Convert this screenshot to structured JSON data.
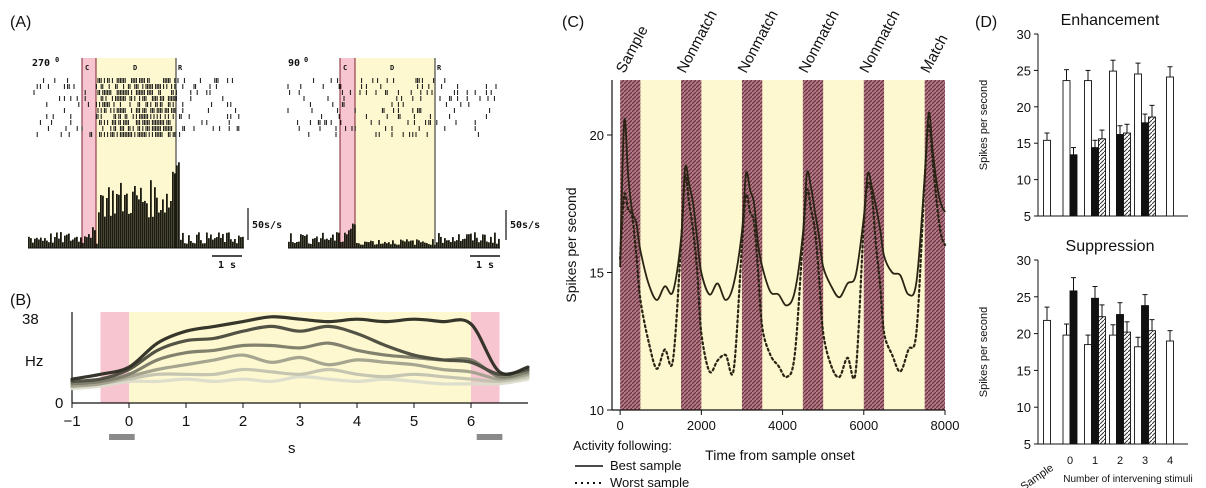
{
  "panels": {
    "a": {
      "label": "(A)",
      "raster_left_title": "270",
      "raster_right_title": "90",
      "degree_symbol": "0",
      "epochs": {
        "cue": "C",
        "delay": "D",
        "response": "R"
      },
      "scale_rate": "50s/s",
      "scale_time": "1 s"
    },
    "b": {
      "label": "(B)",
      "ylabel": "Hz",
      "xlabel": "s",
      "ytick_top": "38",
      "ytick_bottom": "0"
    },
    "c": {
      "label": "(C)",
      "legend_title": "Activity following:",
      "legend_best": "Best sample",
      "legend_worst": "Worst sample"
    },
    "d": {
      "label": "(D)",
      "sample_label": "Sample"
    }
  },
  "colors": {
    "cue_pink": "#f7c5cf",
    "delay_yellow": "#fdf8cf",
    "hatch_maroon": "#7e3d4c",
    "bar_black": "#111111"
  },
  "chart_data": [
    {
      "id": "B",
      "type": "line",
      "xlabel": "s",
      "ylabel": "Hz",
      "xlim": [
        -1,
        7
      ],
      "ylim": [
        0,
        38
      ],
      "xticks": [
        -1,
        0,
        1,
        2,
        3,
        4,
        5,
        6
      ],
      "yticks": [
        0,
        38
      ],
      "cue_window": [
        -0.5,
        0
      ],
      "response_window": [
        6,
        6.5
      ],
      "x": [
        -1,
        -0.5,
        0,
        0.5,
        1,
        1.5,
        2,
        2.5,
        3,
        3.5,
        4,
        4.5,
        5,
        5.5,
        6,
        6.5,
        7
      ],
      "series": [
        {
          "values": [
            10,
            12,
            15,
            25,
            30,
            32,
            34,
            36,
            35,
            34,
            35,
            34,
            35,
            34,
            33,
            13,
            15
          ],
          "color": "#2b2b22"
        },
        {
          "values": [
            9,
            10,
            14,
            22,
            26,
            27,
            30,
            32,
            30,
            32,
            29,
            24,
            20,
            18,
            17,
            12,
            14
          ],
          "color": "#4a4a3d"
        },
        {
          "values": [
            8,
            9,
            12,
            18,
            21,
            22,
            24,
            24,
            23,
            25,
            22,
            20,
            19,
            18,
            18,
            11,
            13
          ],
          "color": "#7a7a68"
        },
        {
          "values": [
            7,
            8,
            11,
            14,
            16,
            18,
            20,
            17,
            19,
            16,
            18,
            17,
            16,
            14,
            13,
            10,
            12
          ],
          "color": "#a0a08c"
        },
        {
          "values": [
            7,
            8,
            10,
            12,
            12,
            12,
            14,
            13,
            12,
            14,
            12,
            11,
            12,
            11,
            10,
            9,
            11
          ],
          "color": "#c2c2b0"
        },
        {
          "values": [
            6,
            7,
            9,
            9,
            10,
            9,
            10,
            9,
            11,
            10,
            9,
            10,
            9,
            8,
            8,
            8,
            10
          ],
          "color": "#dcdccc"
        }
      ]
    },
    {
      "id": "C",
      "type": "line",
      "xlabel": "Time from sample onset",
      "ylabel": "Spikes per second",
      "xlim": [
        -200,
        8000
      ],
      "ylim": [
        10,
        22
      ],
      "xticks": [
        0,
        2000,
        4000,
        6000,
        8000
      ],
      "yticks": [
        10,
        15,
        20
      ],
      "epochs": [
        "Sample",
        "Nonmatch",
        "Nonmatch",
        "Nonmatch",
        "Nonmatch",
        "Match"
      ],
      "stimulus_windows": [
        [
          0,
          500
        ],
        [
          1500,
          2000
        ],
        [
          3000,
          3500
        ],
        [
          4500,
          5000
        ],
        [
          6000,
          6500
        ],
        [
          7500,
          8000
        ]
      ],
      "x": [
        0,
        100,
        200,
        300,
        400,
        500,
        700,
        900,
        1100,
        1300,
        1500,
        1600,
        1700,
        1800,
        1900,
        2000,
        2200,
        2400,
        2600,
        2800,
        3000,
        3100,
        3200,
        3300,
        3400,
        3500,
        3700,
        3900,
        4100,
        4300,
        4500,
        4600,
        4700,
        4800,
        4900,
        5000,
        5200,
        5400,
        5600,
        5800,
        6000,
        6100,
        6200,
        6300,
        6400,
        6500,
        6700,
        6900,
        7100,
        7300,
        7500,
        7600,
        7700,
        7800,
        7900,
        8000
      ],
      "series": [
        {
          "name": "Best sample",
          "style": "solid",
          "values": [
            15.2,
            20.5,
            18.5,
            17.2,
            16.8,
            15.8,
            14.6,
            14.0,
            14.5,
            14.3,
            16.2,
            18.8,
            18.2,
            17.5,
            16.2,
            15.0,
            14.2,
            14.6,
            14.0,
            14.6,
            16.5,
            18.6,
            18.0,
            17.5,
            16.0,
            15.2,
            14.3,
            14.2,
            13.8,
            14.3,
            16.4,
            18.6,
            18.1,
            17.2,
            16.3,
            15.2,
            14.5,
            14.1,
            14.6,
            14.9,
            17.0,
            18.6,
            18.1,
            17.4,
            16.6,
            15.6,
            15.0,
            14.9,
            14.2,
            14.7,
            18.5,
            20.8,
            19.4,
            18.2,
            17.5,
            17.2
          ]
        },
        {
          "name": "Worst sample",
          "style": "dotted",
          "values": [
            15.5,
            17.8,
            17.3,
            17.0,
            15.6,
            14.0,
            12.5,
            11.5,
            12.2,
            11.8,
            16.0,
            18.5,
            17.5,
            16.5,
            15.0,
            12.8,
            11.4,
            11.8,
            12.0,
            11.5,
            16.0,
            17.8,
            17.2,
            16.8,
            15.0,
            13.0,
            12.0,
            11.6,
            11.2,
            12.0,
            16.2,
            18.0,
            17.3,
            16.5,
            14.8,
            12.8,
            11.6,
            11.2,
            11.9,
            11.4,
            16.8,
            18.2,
            17.8,
            16.0,
            14.6,
            12.8,
            12.0,
            11.4,
            12.2,
            12.9,
            18.4,
            20.4,
            19.0,
            17.5,
            16.4,
            16.0
          ]
        }
      ]
    },
    {
      "id": "D-enhancement",
      "type": "bar",
      "title": "Enhancement",
      "ylabel": "Spikes per second",
      "ylim": [
        5,
        30
      ],
      "yticks": [
        5,
        10,
        15,
        20,
        25,
        30
      ],
      "groups": [
        {
          "label": "Sample",
          "bars": [
            {
              "fill": "white",
              "value": 15.4,
              "err": 1.0
            }
          ]
        },
        {
          "label": "0",
          "bars": [
            {
              "fill": "white",
              "value": 23.6,
              "err": 1.5
            },
            {
              "fill": "black",
              "value": 13.4,
              "err": 1.0
            }
          ]
        },
        {
          "label": "1",
          "bars": [
            {
              "fill": "white",
              "value": 23.6,
              "err": 1.4
            },
            {
              "fill": "black",
              "value": 14.4,
              "err": 1.0
            },
            {
              "fill": "hatched",
              "value": 15.6,
              "err": 1.2
            }
          ]
        },
        {
          "label": "2",
          "bars": [
            {
              "fill": "white",
              "value": 24.9,
              "err": 1.5
            },
            {
              "fill": "black",
              "value": 16.2,
              "err": 1.2
            },
            {
              "fill": "hatched",
              "value": 16.4,
              "err": 1.2
            }
          ]
        },
        {
          "label": "3",
          "bars": [
            {
              "fill": "white",
              "value": 24.5,
              "err": 1.5
            },
            {
              "fill": "black",
              "value": 17.8,
              "err": 1.2
            },
            {
              "fill": "hatched",
              "value": 18.6,
              "err": 1.6
            }
          ]
        },
        {
          "label": "4",
          "bars": [
            {
              "fill": "white",
              "value": 24.1,
              "err": 1.4
            }
          ]
        }
      ]
    },
    {
      "id": "D-suppression",
      "type": "bar",
      "title": "Suppression",
      "xlabel": "Number of intervening stimuli",
      "ylabel": "Spikes per second",
      "ylim": [
        5,
        30
      ],
      "yticks": [
        5,
        10,
        15,
        20,
        25,
        30
      ],
      "groups": [
        {
          "label": "Sample",
          "bars": [
            {
              "fill": "white",
              "value": 21.8,
              "err": 1.8
            }
          ]
        },
        {
          "label": "0",
          "bars": [
            {
              "fill": "white",
              "value": 19.8,
              "err": 1.5
            },
            {
              "fill": "black",
              "value": 25.8,
              "err": 1.8
            }
          ]
        },
        {
          "label": "1",
          "bars": [
            {
              "fill": "white",
              "value": 18.5,
              "err": 1.3
            },
            {
              "fill": "black",
              "value": 24.8,
              "err": 1.6
            },
            {
              "fill": "hatched",
              "value": 22.3,
              "err": 1.6
            }
          ]
        },
        {
          "label": "2",
          "bars": [
            {
              "fill": "white",
              "value": 19.8,
              "err": 1.4
            },
            {
              "fill": "black",
              "value": 22.6,
              "err": 1.6
            },
            {
              "fill": "hatched",
              "value": 20.2,
              "err": 1.4
            }
          ]
        },
        {
          "label": "3",
          "bars": [
            {
              "fill": "white",
              "value": 18.2,
              "err": 1.3
            },
            {
              "fill": "black",
              "value": 23.8,
              "err": 1.5
            },
            {
              "fill": "hatched",
              "value": 20.4,
              "err": 1.5
            }
          ]
        },
        {
          "label": "4",
          "bars": [
            {
              "fill": "white",
              "value": 19.0,
              "err": 1.4
            }
          ]
        }
      ]
    }
  ]
}
